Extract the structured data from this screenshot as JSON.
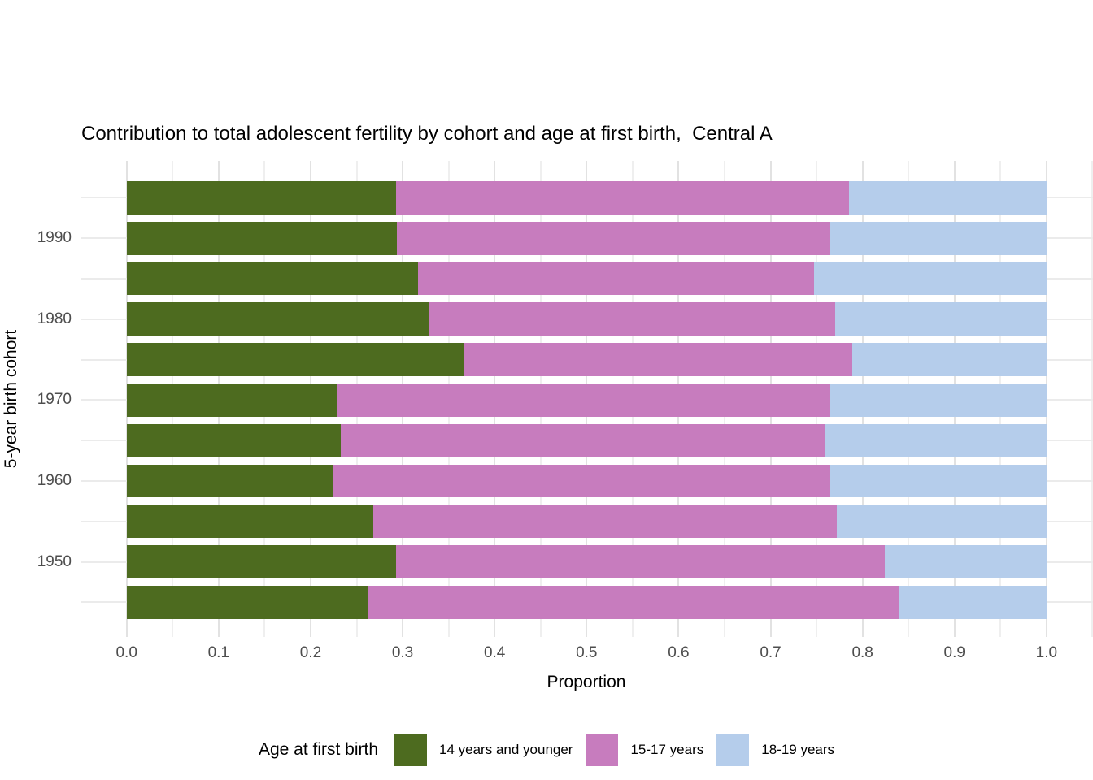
{
  "title": "Contribution to total adolescent fertility by cohort and age at first birth,  Central A",
  "y_axis": {
    "label": "5-year birth cohort",
    "ticks": [
      "1990",
      "1980",
      "1970",
      "1960",
      "1950"
    ]
  },
  "x_axis": {
    "label": "Proportion",
    "ticks": [
      "0.0",
      "0.1",
      "0.2",
      "0.3",
      "0.4",
      "0.5",
      "0.6",
      "0.7",
      "0.8",
      "0.9",
      "1.0"
    ]
  },
  "legend": {
    "title": "Age at first birth",
    "items": [
      {
        "label": "14 years and younger",
        "color": "#4d6b1f"
      },
      {
        "label": "15-17 years",
        "color": "#c77cbe"
      },
      {
        "label": "18-19 years",
        "color": "#b5cdeb"
      }
    ]
  },
  "colors": {
    "green": "#4d6b1f",
    "pink": "#c77cbe",
    "blue": "#b5cdeb",
    "grid_major": "#e2e2e2",
    "grid_minor": "#efefef",
    "axis_text": "#4d4d4d"
  },
  "chart_data": {
    "type": "bar",
    "orientation": "horizontal",
    "stacked": true,
    "title": "Contribution to total adolescent fertility by cohort and age at first birth,  Central A",
    "xlabel": "Proportion",
    "ylabel": "5-year birth cohort",
    "xlim": [
      0,
      1
    ],
    "grid": true,
    "legend_position": "bottom",
    "legend_title": "Age at first birth",
    "categories": [
      1995,
      1990,
      1985,
      1980,
      1975,
      1970,
      1965,
      1960,
      1955,
      1950,
      1945
    ],
    "axis_labeled_categories": [
      1990,
      1980,
      1970,
      1960,
      1950
    ],
    "series": [
      {
        "name": "14 years and younger",
        "color": "#4d6b1f",
        "values": [
          0.293,
          0.294,
          0.317,
          0.328,
          0.366,
          0.229,
          0.233,
          0.225,
          0.268,
          0.293,
          0.263
        ]
      },
      {
        "name": "15-17 years",
        "color": "#c77cbe",
        "values": [
          0.492,
          0.471,
          0.43,
          0.442,
          0.423,
          0.536,
          0.526,
          0.54,
          0.504,
          0.531,
          0.576
        ]
      },
      {
        "name": "18-19 years",
        "color": "#b5cdeb",
        "values": [
          0.215,
          0.235,
          0.253,
          0.23,
          0.211,
          0.235,
          0.241,
          0.235,
          0.228,
          0.176,
          0.161
        ]
      }
    ]
  }
}
